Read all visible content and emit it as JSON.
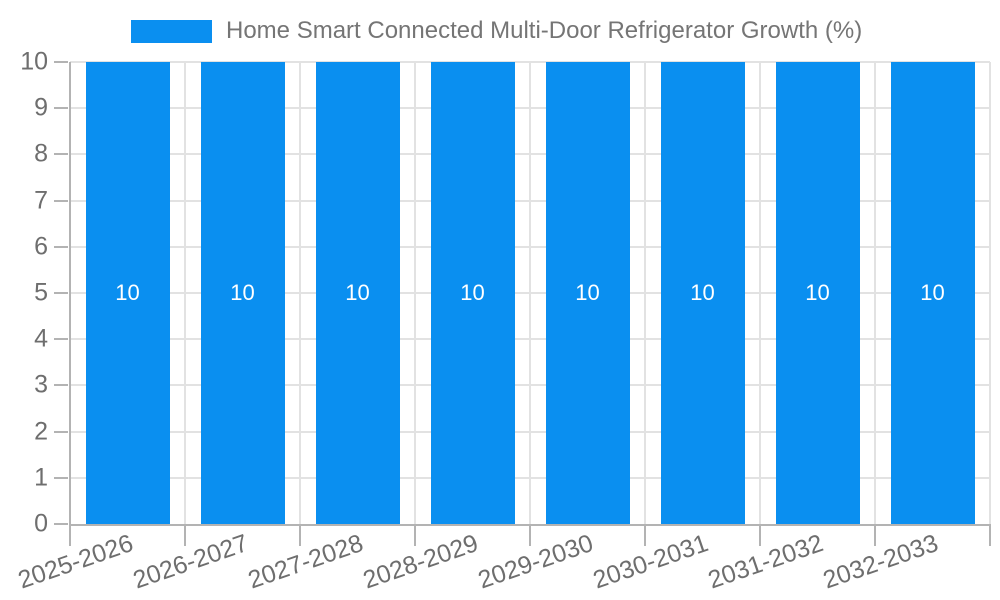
{
  "chart_data": {
    "type": "bar",
    "title": "Home Smart Connected Multi-Door Refrigerator Growth (%)",
    "categories": [
      "2025-2026",
      "2026-2027",
      "2027-2028",
      "2028-2029",
      "2029-2030",
      "2030-2031",
      "2031-2032",
      "2032-2033"
    ],
    "values": [
      10,
      10,
      10,
      10,
      10,
      10,
      10,
      10
    ],
    "xlabel": "",
    "ylabel": "",
    "ylim": [
      0,
      10
    ],
    "yticks": [
      0,
      1,
      2,
      3,
      4,
      5,
      6,
      7,
      8,
      9,
      10
    ],
    "grid": true,
    "legend_position": "top",
    "bar_labels_shown": true,
    "colors": {
      "bar": "#0a8ff0",
      "bar_label": "#ffffff",
      "grid": "#e2e2e2",
      "axis": "#b3b3b3",
      "tick_label": "#6e6e6e",
      "title": "#757575",
      "background": "#ffffff"
    }
  }
}
